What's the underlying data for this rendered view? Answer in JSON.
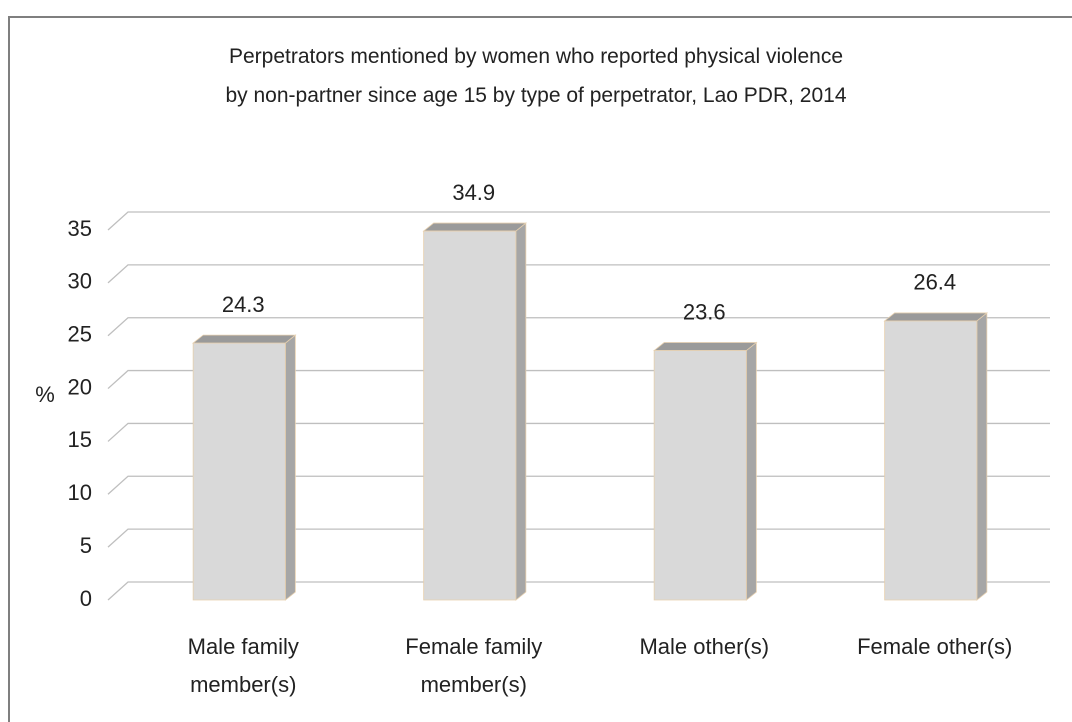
{
  "chart_data": {
    "type": "bar3d",
    "title": [
      "Perpetrators mentioned by women who reported physical violence",
      "by non-partner since age 15 by type of perpetrator, Lao PDR, 2014"
    ],
    "y_label": "%",
    "categories": [
      "Male family member(s)",
      "Female family member(s)",
      "Male other(s)",
      "Female other(s)"
    ],
    "values": [
      24.3,
      34.9,
      23.6,
      26.4
    ],
    "color": "#d9d9d9",
    "ylim": [
      0,
      35
    ],
    "yticks": [
      0,
      5,
      10,
      15,
      20,
      25,
      30,
      35
    ],
    "grid": true
  }
}
